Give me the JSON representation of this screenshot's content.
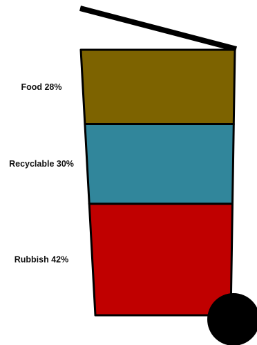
{
  "chart_data": {
    "type": "bar",
    "stacked": true,
    "categories": [
      "Food",
      "Recyclable",
      "Rubbish"
    ],
    "values": [
      28,
      30,
      42
    ],
    "labels": [
      "Food 28%",
      "Recyclable 30%",
      "Rubbish 42%"
    ],
    "unit": "%",
    "colors": [
      "#7d6300",
      "#31869b",
      "#c00000"
    ],
    "outline_color": "#000000",
    "title": "",
    "xlabel": "",
    "ylabel": ""
  }
}
